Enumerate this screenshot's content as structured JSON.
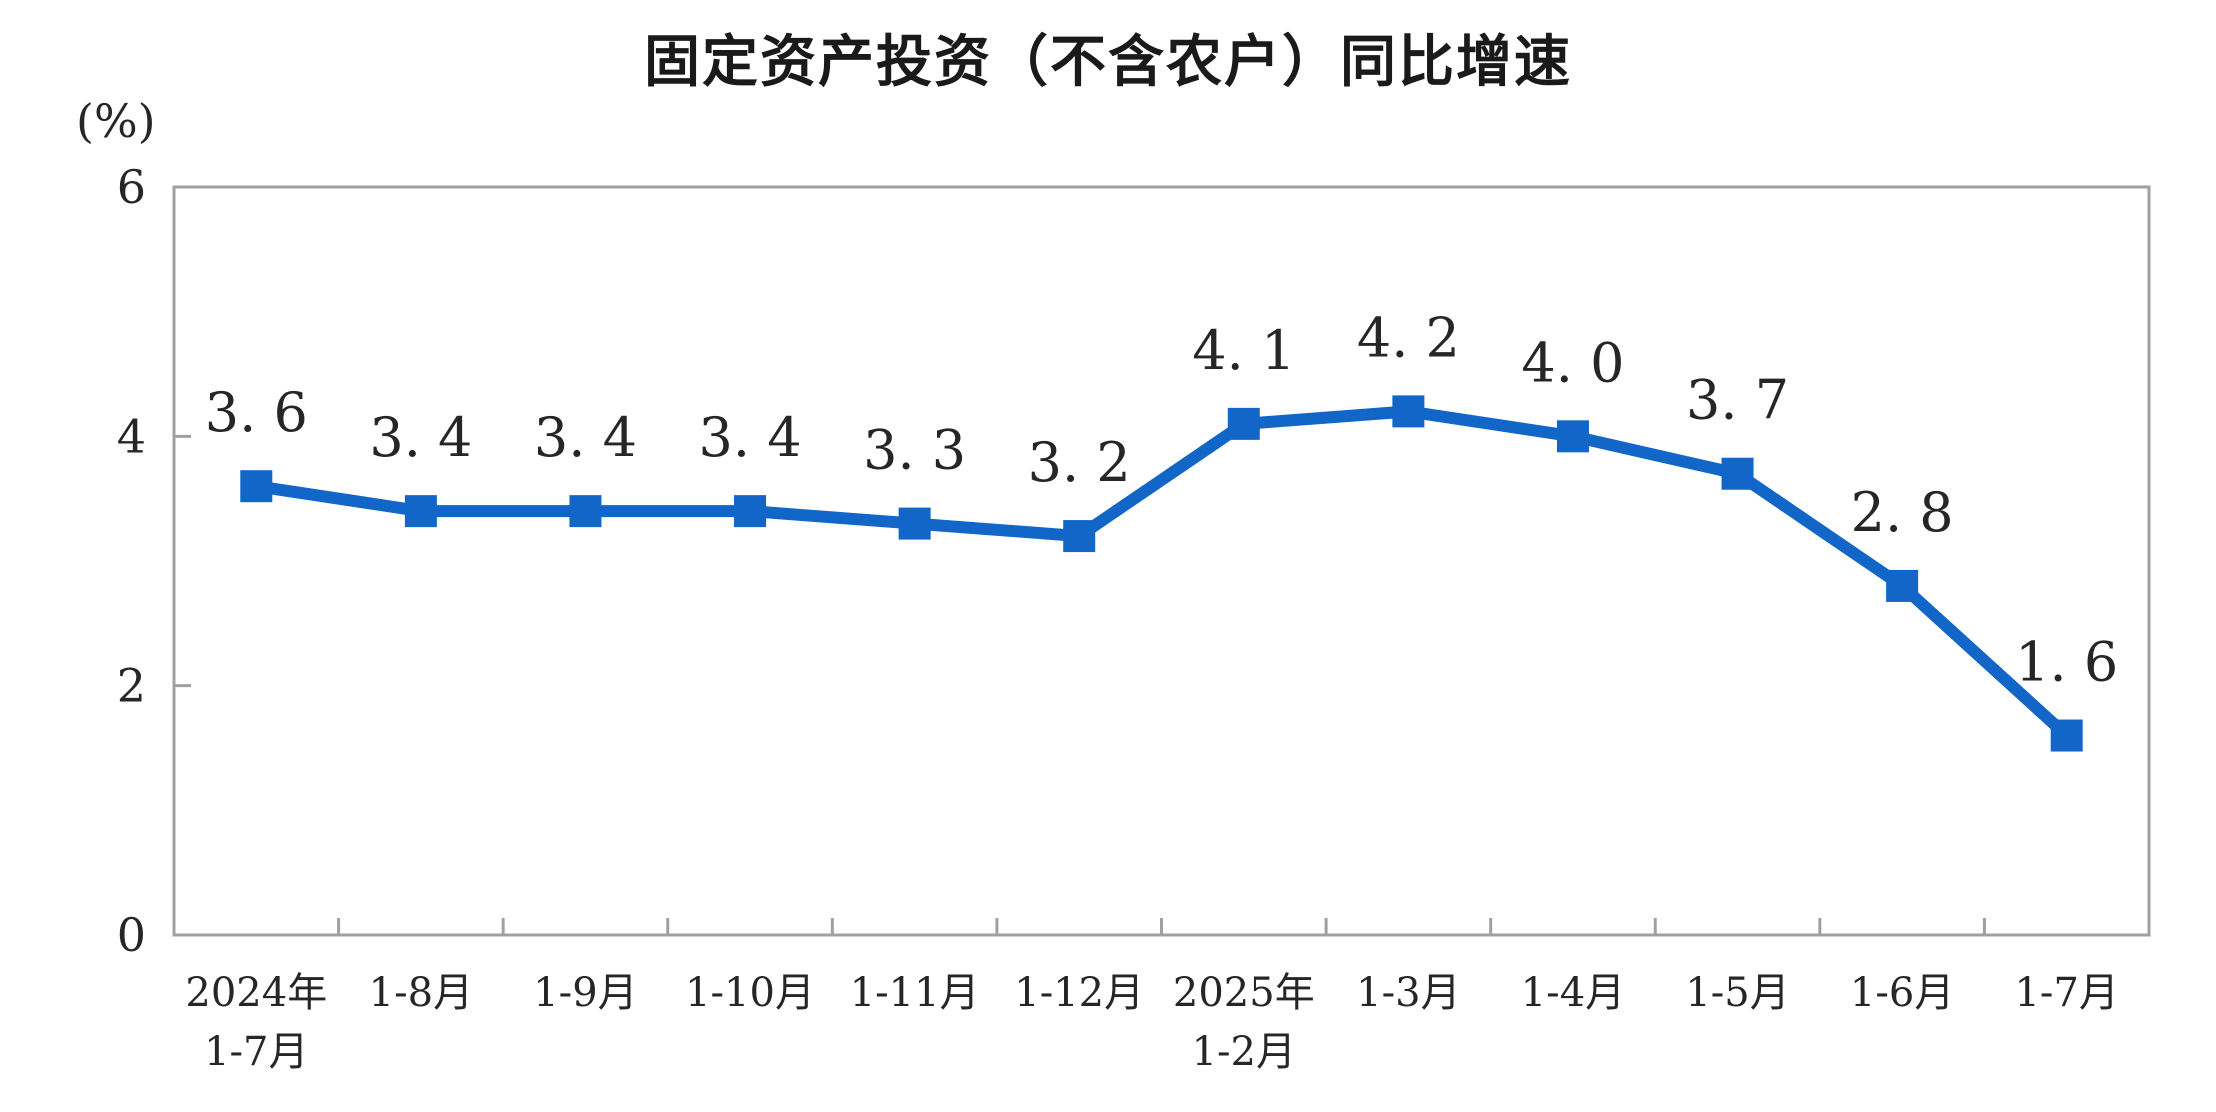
{
  "chart_data": {
    "type": "line",
    "title": "固定资产投资（不含农户）同比增速",
    "unit_label": "(%)",
    "categories": [
      [
        "2024年",
        "1-7月"
      ],
      [
        "1-8月"
      ],
      [
        "1-9月"
      ],
      [
        "1-10月"
      ],
      [
        "1-11月"
      ],
      [
        "1-12月"
      ],
      [
        "2025年",
        "1-2月"
      ],
      [
        "1-3月"
      ],
      [
        "1-4月"
      ],
      [
        "1-5月"
      ],
      [
        "1-6月"
      ],
      [
        "1-7月"
      ]
    ],
    "values": [
      3.6,
      3.4,
      3.4,
      3.4,
      3.3,
      3.2,
      4.1,
      4.2,
      4.0,
      3.7,
      2.8,
      1.6
    ],
    "display_labels": [
      "3. 6",
      "3. 4",
      "3. 4",
      "3. 4",
      "3. 3",
      "3. 2",
      "4. 1",
      "4. 2",
      "4. 0",
      "3. 7",
      "2. 8",
      "1. 6"
    ],
    "xlabel": "",
    "ylabel": "(%)",
    "ylim": [
      0,
      6
    ],
    "yticks": [
      0,
      2,
      4,
      6
    ],
    "grid": false,
    "legend": false,
    "plot_border": true,
    "marker": "square",
    "colors": {
      "line": "#1166C8",
      "axis": "#a0a0a0",
      "text": "#262626",
      "title": "#1a1a1a",
      "background": "#ffffff"
    }
  }
}
